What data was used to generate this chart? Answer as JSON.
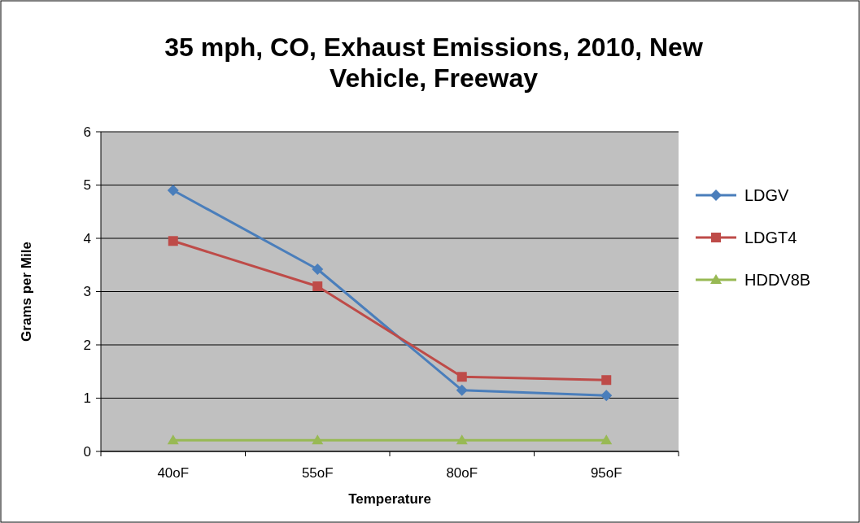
{
  "chart_data": {
    "type": "line",
    "title": "35 mph, CO, Exhaust Emissions, 2010, New Vehicle, Freeway",
    "xlabel": "Temperature",
    "ylabel": "Grams per Mile",
    "categories": [
      "40oF",
      "55oF",
      "80oF",
      "95oF"
    ],
    "series": [
      {
        "name": "LDGV",
        "color": "#4a7ebb",
        "marker": "diamond",
        "values": [
          4.9,
          3.42,
          1.15,
          1.05
        ]
      },
      {
        "name": "LDGT4",
        "color": "#be4b48",
        "marker": "square",
        "values": [
          3.95,
          3.1,
          1.4,
          1.34
        ]
      },
      {
        "name": "HDDV8B",
        "color": "#98b954",
        "marker": "triangle",
        "values": [
          0.21,
          0.21,
          0.21,
          0.21
        ]
      }
    ],
    "ylim": [
      0,
      6
    ],
    "yticks": [
      0,
      1,
      2,
      3,
      4,
      5,
      6
    ],
    "grid": "y",
    "legend": "right"
  }
}
